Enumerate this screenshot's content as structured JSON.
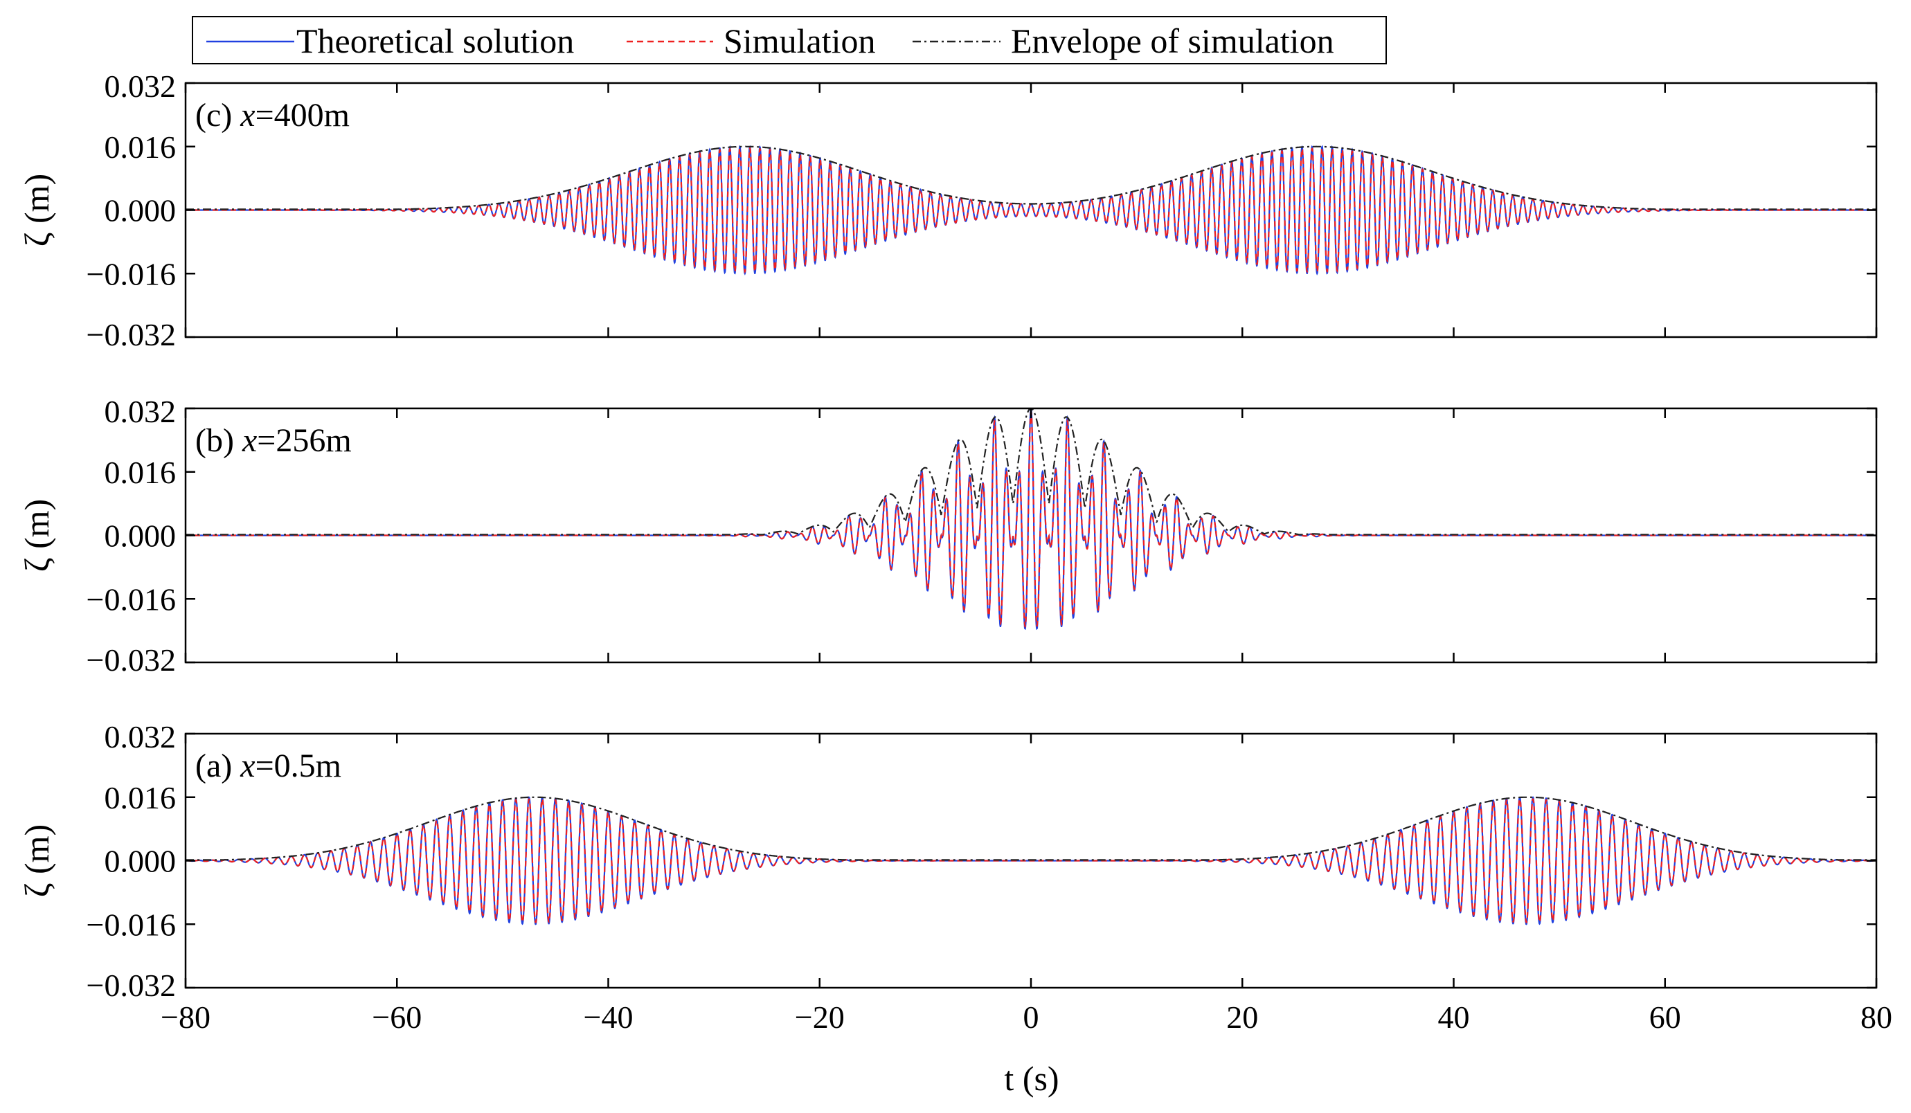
{
  "chart_data": {
    "type": "line",
    "layout": "three vertically stacked panels with shared x axis",
    "xlabel": "t (s)",
    "ylabel": "ζ (m)",
    "xlim": [
      -80,
      80
    ],
    "ylim": [
      -0.032,
      0.032
    ],
    "x_ticks": [
      "−80",
      "−60",
      "−40",
      "−20",
      "0",
      "20",
      "40",
      "60",
      "80"
    ],
    "x_tick_values": [
      -80,
      -60,
      -40,
      -20,
      0,
      20,
      40,
      60,
      80
    ],
    "y_ticks": [
      "0.032",
      "0.016",
      "0.000",
      "−0.016",
      "−0.032"
    ],
    "y_tick_values": [
      0.032,
      0.016,
      0.0,
      -0.016,
      -0.032
    ],
    "legend": {
      "placement": "top-left",
      "entries": [
        {
          "name": "Theoretical solution",
          "color": "#2040e0",
          "dash": "solid"
        },
        {
          "name": "Simulation",
          "color": "#ee2020",
          "dash": "dashed"
        },
        {
          "name": "Envelope of simulation",
          "color": "#222222",
          "dash": "dash-dot"
        }
      ]
    },
    "panels": [
      {
        "id": "c",
        "label_prefix": "(c) ",
        "label_var": "x",
        "label_value": "=400m",
        "envelope_peaks": [
          {
            "t": -27,
            "amp": 0.016,
            "sigma": 11
          },
          {
            "t": 27,
            "amp": 0.016,
            "sigma": 11
          }
        ],
        "carrier_period_s": 0.95,
        "annotation": "Two wave groups centred near t = ±27 s, peak |ζ| ≈ 0.016 m"
      },
      {
        "id": "b",
        "label_prefix": "(b) ",
        "label_var": "x",
        "label_value": "=256m",
        "envelope_peaks": [
          {
            "t": 0,
            "amp": 0.032,
            "sigma": 9
          }
        ],
        "carrier_period_s": 1.15,
        "beat_period_s": 3.4,
        "annotation": "Focused group at t = 0 s, peak ζ ≈ 0.032 m, trough ≈ −0.027 m"
      },
      {
        "id": "a",
        "label_prefix": "(a) ",
        "label_var": "x",
        "label_value": "=0.5m",
        "envelope_peaks": [
          {
            "t": -47,
            "amp": 0.016,
            "sigma": 10
          },
          {
            "t": 47,
            "amp": 0.016,
            "sigma": 10
          }
        ],
        "carrier_period_s": 1.25,
        "annotation": "Two wave groups centred near t = ±47 s, peak |ζ| ≈ 0.016 m"
      }
    ]
  }
}
